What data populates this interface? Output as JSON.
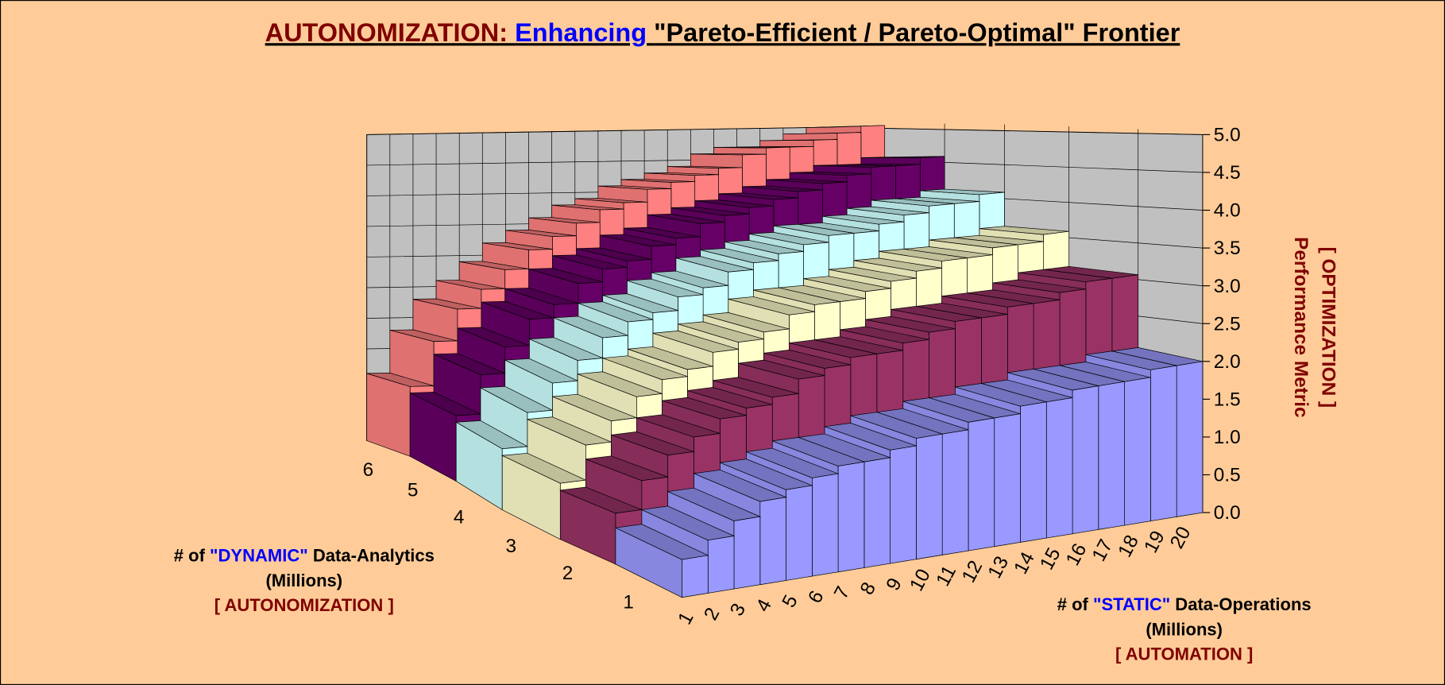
{
  "chart_data": {
    "type": "bar3d",
    "title_parts": [
      {
        "text": "AUTONOMIZATION:",
        "color": "#800000"
      },
      {
        "text": "Enhancing",
        "color": "#0000ff"
      },
      {
        "text": "\"Pareto-Efficient / Pareto-Optimal\" Frontier",
        "color": "#000000"
      }
    ],
    "depth_label": [
      [
        {
          "text": "# of",
          "color": "#000000"
        },
        {
          "text": "\"DYNAMIC\"",
          "color": "#0000ff"
        },
        {
          "text": "Data-Analytics",
          "color": "#000000"
        }
      ],
      [
        {
          "text": "(Millions)",
          "color": "#000000"
        }
      ],
      [
        {
          "text": "[ AUTONOMIZATION ]",
          "color": "#800000"
        }
      ]
    ],
    "x_label": [
      [
        {
          "text": "# of",
          "color": "#000000"
        },
        {
          "text": "\"STATIC\"",
          "color": "#0000ff"
        },
        {
          "text": "Data-Operations",
          "color": "#000000"
        }
      ],
      [
        {
          "text": "(Millions)",
          "color": "#000000"
        }
      ],
      [
        {
          "text": "[ AUTOMATION ]",
          "color": "#800000"
        }
      ]
    ],
    "y_label": [
      "Performance Metric",
      "[ OPTIMIZATION ]"
    ],
    "x": [
      1,
      2,
      3,
      4,
      5,
      6,
      7,
      8,
      9,
      10,
      11,
      12,
      13,
      14,
      15,
      16,
      17,
      18,
      19,
      20
    ],
    "series": [
      {
        "name": "1",
        "color": "#9999ff",
        "values": [
          0.5,
          0.7,
          0.9,
          1.1,
          1.2,
          1.3,
          1.4,
          1.4,
          1.5,
          1.6,
          1.6,
          1.7,
          1.7,
          1.8,
          1.8,
          1.9,
          1.9,
          1.9,
          2.0,
          2.0
        ]
      },
      {
        "name": "2",
        "color": "#993366",
        "values": [
          0.7,
          1.1,
          1.4,
          1.6,
          1.8,
          1.9,
          2.0,
          2.2,
          2.3,
          2.4,
          2.4,
          2.5,
          2.6,
          2.7,
          2.7,
          2.8,
          2.8,
          2.9,
          3.0,
          3.0
        ]
      },
      {
        "name": "3",
        "color": "#ffffcc",
        "values": [
          0.8,
          1.3,
          1.6,
          1.9,
          2.1,
          2.2,
          2.4,
          2.5,
          2.6,
          2.8,
          2.9,
          2.9,
          3.0,
          3.1,
          3.2,
          3.3,
          3.3,
          3.4,
          3.4,
          3.5
        ]
      },
      {
        "name": "4",
        "color": "#ccffff",
        "values": [
          0.9,
          1.4,
          1.8,
          2.1,
          2.4,
          2.6,
          2.7,
          2.9,
          3.0,
          3.2,
          3.3,
          3.4,
          3.5,
          3.6,
          3.6,
          3.7,
          3.8,
          3.9,
          3.9,
          4.0
        ]
      },
      {
        "name": "5",
        "color": "#660066",
        "values": [
          1.0,
          1.6,
          2.0,
          2.4,
          2.6,
          2.9,
          3.1,
          3.2,
          3.4,
          3.5,
          3.7,
          3.8,
          3.9,
          4.0,
          4.1,
          4.2,
          4.3,
          4.4,
          4.4,
          4.5
        ]
      },
      {
        "name": "6",
        "color": "#ff8080",
        "values": [
          1.1,
          1.8,
          2.3,
          2.6,
          2.9,
          3.2,
          3.4,
          3.6,
          3.8,
          3.9,
          4.1,
          4.2,
          4.3,
          4.4,
          4.6,
          4.7,
          4.7,
          4.8,
          4.9,
          5.0
        ]
      }
    ],
    "ylim": [
      0,
      5
    ],
    "yticks": [
      {
        "value": 0,
        "label": "0.0"
      },
      0.5,
      {
        "value": 1,
        "label": "1.0"
      },
      1.5,
      {
        "value": 2,
        "label": "2.0"
      },
      2.5,
      {
        "value": 3,
        "label": "3.0"
      },
      3.5,
      {
        "value": 4,
        "label": "4.0"
      },
      4.5,
      {
        "value": 5,
        "label": "5.0"
      }
    ],
    "wall_color": "#c0c0c0",
    "grid": true
  }
}
